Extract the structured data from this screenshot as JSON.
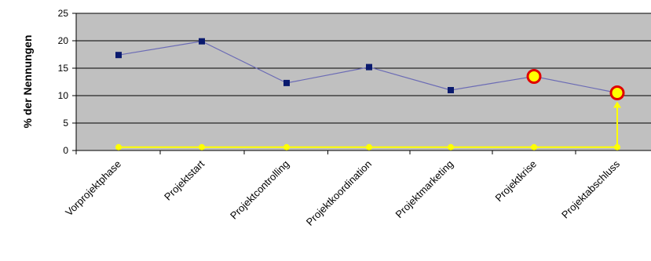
{
  "chart_data": {
    "type": "line",
    "title": "",
    "xlabel": "",
    "ylabel": "% der Nennungen",
    "ylim": [
      0,
      25
    ],
    "yticks": [
      0,
      5,
      10,
      15,
      20,
      25
    ],
    "grid": true,
    "legend": "none",
    "categories": [
      "Vorprojektphase",
      "Projektstart",
      "Projektcontrolling",
      "Projektkoordination",
      "Projektmarketing",
      "Projektkrise",
      "Projektabschluss"
    ],
    "series": [
      {
        "values": [
          17.4,
          19.9,
          12.3,
          15.2,
          11.0,
          13.5,
          10.5
        ],
        "color": "#6b6bb5",
        "marker_color": "#0a1a6e",
        "marker": "square"
      }
    ],
    "highlighted_points": [
      {
        "category": "Projektkrise",
        "value": 13.5
      },
      {
        "category": "Projektabschluss",
        "value": 10.5
      }
    ],
    "baseline_annotation": {
      "value": 0.6,
      "color": "#ffff00",
      "arrow_to": {
        "category": "Projektabschluss",
        "value": 10.5
      }
    },
    "colors": {
      "plot_background": "#c0c0c0",
      "gridline": "#000000",
      "highlight_fill": "#ffff00",
      "highlight_stroke": "#e00000"
    }
  }
}
